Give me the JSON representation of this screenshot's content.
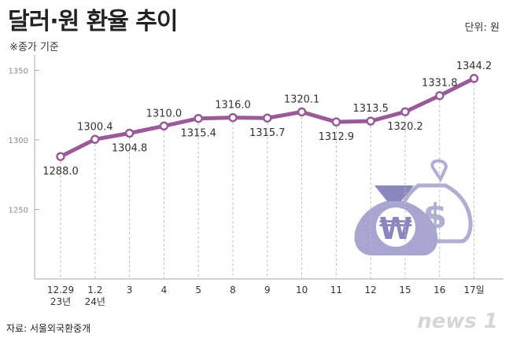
{
  "title": "달러·원 환율 추이",
  "note": "※종가 기준",
  "unit": "단위: 원",
  "source": "자료: 서울외국환중개",
  "logo": "news 1",
  "colors": {
    "line": "#9a5a98",
    "axis": "#aaaaaa",
    "icon_light": "#b0aed2",
    "icon_dark": "#7c78b2"
  },
  "icons": [
    "won-money-bag-icon",
    "dollar-money-bag-icon"
  ],
  "chart_data": {
    "type": "line",
    "categories": [
      "12.29\n23년",
      "1.2\n24년",
      "3",
      "4",
      "5",
      "8",
      "9",
      "10",
      "11",
      "12",
      "15",
      "16",
      "17일"
    ],
    "values": [
      1288.0,
      1300.4,
      1304.8,
      1310.0,
      1315.4,
      1316.0,
      1315.7,
      1320.1,
      1312.9,
      1313.5,
      1320.2,
      1331.8,
      1344.2
    ],
    "value_labels": [
      "1288.0",
      "1300.4",
      "1304.8",
      "1310.0",
      "1315.4",
      "1316.0",
      "1315.7",
      "1320.1",
      "1312.9",
      "1313.5",
      "1320.2",
      "1331.8",
      "1344.2"
    ],
    "y_ticks": [
      "1250",
      "1300",
      "1350"
    ],
    "ylim": [
      1200,
      1350
    ],
    "grid": false
  }
}
